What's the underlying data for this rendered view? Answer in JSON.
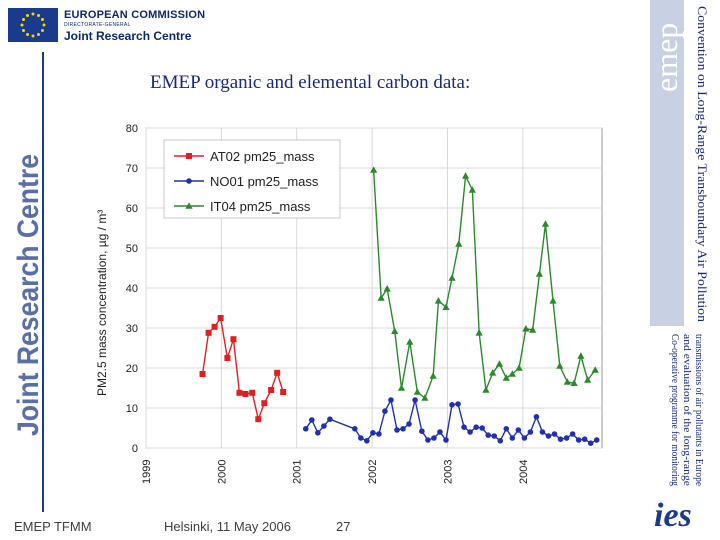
{
  "header": {
    "org_name": "EUROPEAN COMMISSION",
    "directorate": "DIRECTORATE-GENERAL",
    "centre": "Joint Research Centre",
    "vertical_brand": "Joint Research Centre"
  },
  "slide": {
    "title": "EMEP organic and elemental carbon data:"
  },
  "right_panel": {
    "logo": "emep",
    "convention": "Convention on Long-Range Transboundary Air Pollution",
    "programme_lines": [
      "Co-operative programme for monitoring",
      "and evaluation of the long-range",
      "transmissions of air pollutants in Europe"
    ],
    "bottom_logo": "ies"
  },
  "footer": {
    "left": "EMEP TFMM",
    "center": "Helsinki, 11 May 2006",
    "page": "27"
  },
  "colors": {
    "brand_blue": "#1a3a8c",
    "series_at02": "#e02020",
    "series_no01": "#2030b0",
    "series_it04": "#2a8a2a"
  },
  "chart_data": {
    "type": "line",
    "title": "",
    "xlabel": "",
    "ylabel": "PM2.5 mass concentration, µg / m³",
    "xlim": [
      1999,
      2005.05
    ],
    "ylim": [
      0,
      80
    ],
    "yticks": [
      "0",
      "10",
      "20",
      "30",
      "40",
      "50",
      "60",
      "70",
      "80"
    ],
    "xticks": [
      "1999",
      "2000",
      "2001",
      "2002",
      "2003",
      "2004"
    ],
    "legend_position": "top-left",
    "series": [
      {
        "name": "AT02 pm25_mass",
        "marker": "square",
        "x": [
          1999.75,
          1999.83,
          1999.91,
          1999.99,
          2000.08,
          2000.16,
          2000.24,
          2000.32,
          2000.41,
          2000.49,
          2000.57,
          2000.66,
          2000.74,
          2000.82
        ],
        "y": [
          18.5,
          28.8,
          30.3,
          32.5,
          22.5,
          27.2,
          13.8,
          13.5,
          13.8,
          7.2,
          11.2,
          14.5,
          18.8,
          14.0
        ]
      },
      {
        "name": "NO01 pm25_mass",
        "marker": "circle",
        "x": [
          2001.12,
          2001.2,
          2001.28,
          2001.36,
          2001.44,
          2001.77,
          2001.85,
          2001.93,
          2002.01,
          2002.09,
          2002.17,
          2002.25,
          2002.33,
          2002.41,
          2002.49,
          2002.57,
          2002.66,
          2002.74,
          2002.82,
          2002.9,
          2002.98,
          2003.06,
          2003.14,
          2003.22,
          2003.3,
          2003.38,
          2003.46,
          2003.54,
          2003.62,
          2003.7,
          2003.78,
          2003.86,
          2003.94,
          2004.02,
          2004.1,
          2004.18,
          2004.26,
          2004.34,
          2004.42,
          2004.5,
          2004.58,
          2004.66,
          2004.74,
          2004.82,
          2004.9,
          2004.98
        ],
        "y": [
          4.8,
          7.0,
          3.8,
          5.5,
          7.2,
          4.8,
          2.5,
          1.8,
          3.8,
          3.5,
          9.2,
          12.0,
          4.5,
          4.8,
          6.0,
          12.0,
          4.2,
          2.0,
          2.5,
          4.0,
          2.0,
          10.8,
          11.0,
          5.2,
          4.0,
          5.2,
          5.0,
          3.2,
          3.0,
          1.8,
          4.8,
          2.5,
          4.5,
          2.5,
          4.0,
          7.8,
          4.0,
          3.0,
          3.5,
          2.2,
          2.5,
          3.5,
          2.0,
          2.2,
          1.2,
          2.0
        ]
      },
      {
        "name": "IT04 pm25_mass",
        "marker": "triangle",
        "x": [
          2002.02,
          2002.12,
          2002.2,
          2002.3,
          2002.39,
          2002.5,
          2002.6,
          2002.7,
          2002.81,
          2002.88,
          2002.98,
          2003.06,
          2003.15,
          2003.24,
          2003.33,
          2003.42,
          2003.51,
          2003.6,
          2003.69,
          2003.78,
          2003.86,
          2003.95,
          2004.04,
          2004.13,
          2004.22,
          2004.3,
          2004.4,
          2004.49,
          2004.59,
          2004.68,
          2004.77,
          2004.86,
          2004.96
        ],
        "y": [
          69.5,
          37.5,
          39.8,
          29.2,
          15.0,
          26.5,
          14.0,
          12.5,
          18.0,
          36.8,
          35.2,
          42.5,
          51.0,
          68.0,
          64.5,
          28.8,
          14.5,
          18.8,
          21.0,
          17.5,
          18.5,
          20.0,
          29.8,
          29.5,
          43.5,
          56.0,
          36.8,
          20.5,
          16.5,
          16.2,
          23.0,
          17.0,
          19.5
        ]
      }
    ]
  }
}
